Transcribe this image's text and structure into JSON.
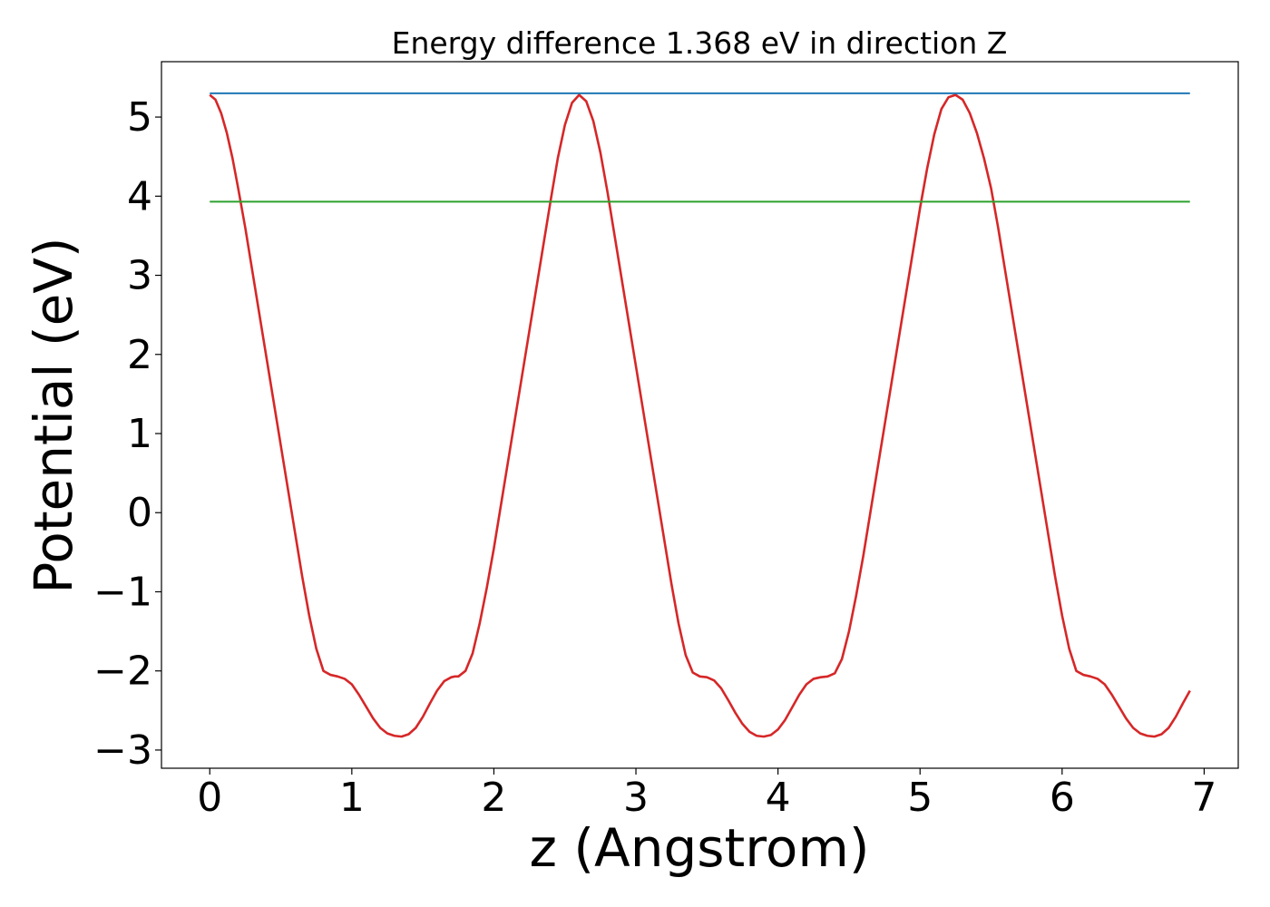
{
  "chart_data": {
    "type": "line",
    "title": "Energy difference 1.368 eV in direction Z",
    "xlabel": "z (Angstrom)",
    "ylabel": "Potential (eV)",
    "xlim": [
      -0.34,
      7.24
    ],
    "ylim": [
      -3.23,
      5.7
    ],
    "x_ticks": [
      0,
      1,
      2,
      3,
      4,
      5,
      6,
      7
    ],
    "x_tick_labels": [
      "0",
      "1",
      "2",
      "3",
      "4",
      "5",
      "6",
      "7"
    ],
    "y_ticks": [
      -3,
      -2,
      -1,
      0,
      1,
      2,
      3,
      4,
      5
    ],
    "y_tick_labels": [
      "−3",
      "−2",
      "−1",
      "0",
      "1",
      "2",
      "3",
      "4",
      "5"
    ],
    "grid": false,
    "legend": "none",
    "series": [
      {
        "color": "#d62728",
        "x": [
          0.0,
          0.04,
          0.08,
          0.12,
          0.16,
          0.2,
          0.25,
          0.3,
          0.35,
          0.4,
          0.45,
          0.5,
          0.55,
          0.6,
          0.65,
          0.7,
          0.75,
          0.8,
          0.85,
          0.9,
          0.95,
          1.0,
          1.05,
          1.1,
          1.15,
          1.2,
          1.25,
          1.3,
          1.35,
          1.4,
          1.45,
          1.5,
          1.55,
          1.6,
          1.65,
          1.7,
          1.725,
          1.75,
          1.8,
          1.85,
          1.9,
          1.95,
          2.0,
          2.05,
          2.1,
          2.15,
          2.2,
          2.25,
          2.3,
          2.35,
          2.4,
          2.45,
          2.5,
          2.55,
          2.6,
          2.65,
          2.7,
          2.75,
          2.8,
          2.85,
          2.9,
          2.95,
          3.0,
          3.05,
          3.1,
          3.15,
          3.2,
          3.25,
          3.3,
          3.35,
          3.4,
          3.45,
          3.5,
          3.55,
          3.6,
          3.65,
          3.7,
          3.75,
          3.8,
          3.85,
          3.9,
          3.95,
          4.0,
          4.05,
          4.1,
          4.15,
          4.2,
          4.25,
          4.3,
          4.35,
          4.4,
          4.45,
          4.5,
          4.55,
          4.6,
          4.65,
          4.7,
          4.75,
          4.8,
          4.85,
          4.9,
          4.95,
          5.0,
          5.05,
          5.1,
          5.15,
          5.2,
          5.25,
          5.3,
          5.35,
          5.4,
          5.45,
          5.5,
          5.55,
          5.6,
          5.65,
          5.7,
          5.75,
          5.8,
          5.85,
          5.9,
          5.95,
          6.0,
          6.05,
          6.1,
          6.15,
          6.2,
          6.25,
          6.3,
          6.35,
          6.4,
          6.45,
          6.5,
          6.55,
          6.6,
          6.65,
          6.7,
          6.75,
          6.8,
          6.85,
          6.9
        ],
        "y": [
          5.28,
          5.22,
          5.05,
          4.8,
          4.48,
          4.1,
          3.6,
          3.05,
          2.5,
          1.95,
          1.4,
          0.85,
          0.3,
          -0.25,
          -0.8,
          -1.3,
          -1.72,
          -2.0,
          -2.05,
          -2.07,
          -2.1,
          -2.17,
          -2.3,
          -2.45,
          -2.6,
          -2.72,
          -2.79,
          -2.82,
          -2.83,
          -2.8,
          -2.72,
          -2.58,
          -2.41,
          -2.25,
          -2.13,
          -2.08,
          -2.07,
          -2.07,
          -2.0,
          -1.78,
          -1.4,
          -0.95,
          -0.45,
          0.1,
          0.65,
          1.2,
          1.75,
          2.3,
          2.85,
          3.4,
          3.95,
          4.48,
          4.9,
          5.18,
          5.28,
          5.2,
          4.95,
          4.55,
          4.05,
          3.5,
          2.95,
          2.4,
          1.85,
          1.3,
          0.75,
          0.2,
          -0.35,
          -0.9,
          -1.4,
          -1.8,
          -2.02,
          -2.07,
          -2.08,
          -2.12,
          -2.22,
          -2.37,
          -2.53,
          -2.67,
          -2.77,
          -2.82,
          -2.83,
          -2.81,
          -2.74,
          -2.62,
          -2.46,
          -2.3,
          -2.17,
          -2.1,
          -2.08,
          -2.07,
          -2.03,
          -1.85,
          -1.5,
          -1.05,
          -0.55,
          0.0,
          0.55,
          1.1,
          1.65,
          2.2,
          2.75,
          3.3,
          3.85,
          4.35,
          4.78,
          5.1,
          5.25,
          5.28,
          5.22,
          5.05,
          4.8,
          4.48,
          4.1,
          3.6,
          3.05,
          2.5,
          1.95,
          1.4,
          0.85,
          0.3,
          -0.25,
          -0.8,
          -1.3,
          -1.72,
          -2.0,
          -2.05,
          -2.07,
          -2.1,
          -2.17,
          -2.3,
          -2.45,
          -2.6,
          -2.72,
          -2.79,
          -2.82,
          -2.83,
          -2.8,
          -2.72,
          -2.58,
          -2.41,
          -2.25
        ]
      },
      {
        "color": "#1f77b4",
        "x": [
          0.0,
          6.9
        ],
        "y": [
          5.3,
          5.3
        ]
      },
      {
        "color": "#2ca02c",
        "x": [
          0.0,
          6.9
        ],
        "y": [
          3.93,
          3.93
        ]
      }
    ]
  }
}
